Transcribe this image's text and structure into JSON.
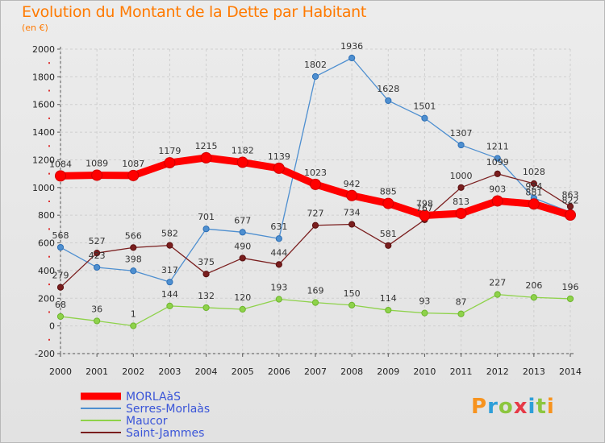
{
  "header": {
    "title": "Evolution du Montant de la Dette par Habitant",
    "unit": "(en €)"
  },
  "brand": {
    "text": "Proxiti",
    "colors": [
      "#f7931e",
      "#2e9fd9",
      "#8cc63f",
      "#e63946",
      "#2e9fd9",
      "#8cc63f",
      "#f7931e"
    ]
  },
  "chart_data": {
    "type": "line",
    "title": "Evolution du Montant de la Dette par Habitant",
    "subtitle": "(en €)",
    "xlabel": "",
    "ylabel": "",
    "x": [
      "2000",
      "2001",
      "2002",
      "2003",
      "2004",
      "2005",
      "2006",
      "2007",
      "2008",
      "2009",
      "2010",
      "2011",
      "2012",
      "2013",
      "2014"
    ],
    "ylim": [
      -200,
      2000
    ],
    "yticks": [
      -200,
      0,
      200,
      400,
      600,
      800,
      1000,
      1200,
      1400,
      1600,
      1800,
      2000
    ],
    "grid": true,
    "legend_position": "bottom-left",
    "series": [
      {
        "name": "MORLAàS",
        "color": "#ff0000",
        "emphasis": true,
        "values": [
          1084,
          1089,
          1087,
          1179,
          1215,
          1182,
          1139,
          1023,
          942,
          885,
          798,
          813,
          903,
          881,
          801
        ],
        "labels": [
          "1084",
          "1089",
          "1087",
          "1179",
          "1215",
          "1182",
          "1139",
          "1023",
          "942",
          "885",
          "798",
          "813",
          "903",
          "881",
          ""
        ]
      },
      {
        "name": "Serres-Morlaàs",
        "color": "#4e8fd0",
        "values": [
          568,
          423,
          398,
          317,
          701,
          677,
          631,
          1802,
          1936,
          1628,
          1501,
          1307,
          1211,
          924,
          822
        ],
        "labels": [
          "568",
          "423",
          "398",
          "317",
          "701",
          "677",
          "631",
          "1802",
          "1936",
          "1628",
          "1501",
          "1307",
          "1211",
          "924",
          "822"
        ]
      },
      {
        "name": "Maucor",
        "color": "#8ed24a",
        "values": [
          68,
          36,
          1,
          144,
          132,
          120,
          193,
          169,
          150,
          114,
          93,
          87,
          227,
          206,
          196
        ],
        "labels": [
          "68",
          "36",
          "1",
          "144",
          "132",
          "120",
          "193",
          "169",
          "150",
          "114",
          "93",
          "87",
          "227",
          "206",
          "196"
        ]
      },
      {
        "name": "Saint-Jammes",
        "color": "#7a1e1e",
        "values": [
          279,
          527,
          566,
          582,
          375,
          490,
          444,
          727,
          734,
          581,
          767,
          1000,
          1099,
          1028,
          863
        ],
        "labels": [
          "279",
          "527",
          "566",
          "582",
          "375",
          "490",
          "444",
          "727",
          "734",
          "581",
          "767",
          "1000",
          "1099",
          "1028",
          "863"
        ]
      }
    ]
  }
}
